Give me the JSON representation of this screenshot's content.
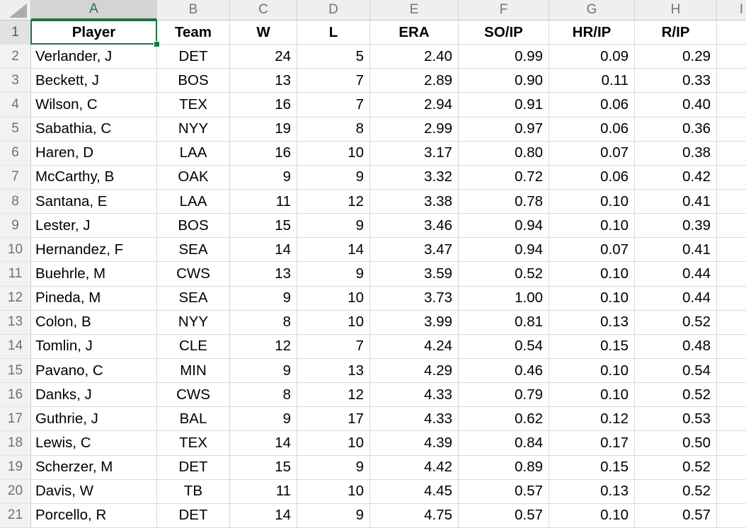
{
  "grid": {
    "selected_cell": "A1",
    "selected_column_letter": "A",
    "selected_row_number": "1",
    "colors": {
      "accent_green": "#217346",
      "gridline": "#dadada",
      "header_bg": "#efefef",
      "header_selected_bg": "#d4d4d4",
      "header_text": "#757575"
    },
    "column_letters": [
      "A",
      "B",
      "C",
      "D",
      "E",
      "F",
      "G",
      "H",
      "I"
    ],
    "row_numbers": [
      "1",
      "2",
      "3",
      "4",
      "5",
      "6",
      "7",
      "8",
      "9",
      "10",
      "11",
      "12",
      "13",
      "14",
      "15",
      "16",
      "17",
      "18",
      "19",
      "20",
      "21"
    ],
    "column_headers": [
      "Player",
      "Team",
      "W",
      "L",
      "ERA",
      "SO/IP",
      "HR/IP",
      "R/IP"
    ],
    "rows": [
      [
        "Verlander, J",
        "DET",
        "24",
        "5",
        "2.40",
        "0.99",
        "0.09",
        "0.29"
      ],
      [
        "Beckett, J",
        "BOS",
        "13",
        "7",
        "2.89",
        "0.90",
        "0.11",
        "0.33"
      ],
      [
        "Wilson, C",
        "TEX",
        "16",
        "7",
        "2.94",
        "0.91",
        "0.06",
        "0.40"
      ],
      [
        "Sabathia, C",
        "NYY",
        "19",
        "8",
        "2.99",
        "0.97",
        "0.06",
        "0.36"
      ],
      [
        "Haren, D",
        "LAA",
        "16",
        "10",
        "3.17",
        "0.80",
        "0.07",
        "0.38"
      ],
      [
        "McCarthy, B",
        "OAK",
        "9",
        "9",
        "3.32",
        "0.72",
        "0.06",
        "0.42"
      ],
      [
        "Santana, E",
        "LAA",
        "11",
        "12",
        "3.38",
        "0.78",
        "0.10",
        "0.41"
      ],
      [
        "Lester, J",
        "BOS",
        "15",
        "9",
        "3.46",
        "0.94",
        "0.10",
        "0.39"
      ],
      [
        "Hernandez, F",
        "SEA",
        "14",
        "14",
        "3.47",
        "0.94",
        "0.07",
        "0.41"
      ],
      [
        "Buehrle, M",
        "CWS",
        "13",
        "9",
        "3.59",
        "0.52",
        "0.10",
        "0.44"
      ],
      [
        "Pineda, M",
        "SEA",
        "9",
        "10",
        "3.73",
        "1.00",
        "0.10",
        "0.44"
      ],
      [
        "Colon, B",
        "NYY",
        "8",
        "10",
        "3.99",
        "0.81",
        "0.13",
        "0.52"
      ],
      [
        "Tomlin, J",
        "CLE",
        "12",
        "7",
        "4.24",
        "0.54",
        "0.15",
        "0.48"
      ],
      [
        "Pavano, C",
        "MIN",
        "9",
        "13",
        "4.29",
        "0.46",
        "0.10",
        "0.54"
      ],
      [
        "Danks, J",
        "CWS",
        "8",
        "12",
        "4.33",
        "0.79",
        "0.10",
        "0.52"
      ],
      [
        "Guthrie, J",
        "BAL",
        "9",
        "17",
        "4.33",
        "0.62",
        "0.12",
        "0.53"
      ],
      [
        "Lewis, C",
        "TEX",
        "14",
        "10",
        "4.39",
        "0.84",
        "0.17",
        "0.50"
      ],
      [
        "Scherzer, M",
        "DET",
        "15",
        "9",
        "4.42",
        "0.89",
        "0.15",
        "0.52"
      ],
      [
        "Davis, W",
        "TB",
        "11",
        "10",
        "4.45",
        "0.57",
        "0.13",
        "0.52"
      ],
      [
        "Porcello, R",
        "DET",
        "14",
        "9",
        "4.75",
        "0.57",
        "0.10",
        "0.57"
      ]
    ]
  }
}
